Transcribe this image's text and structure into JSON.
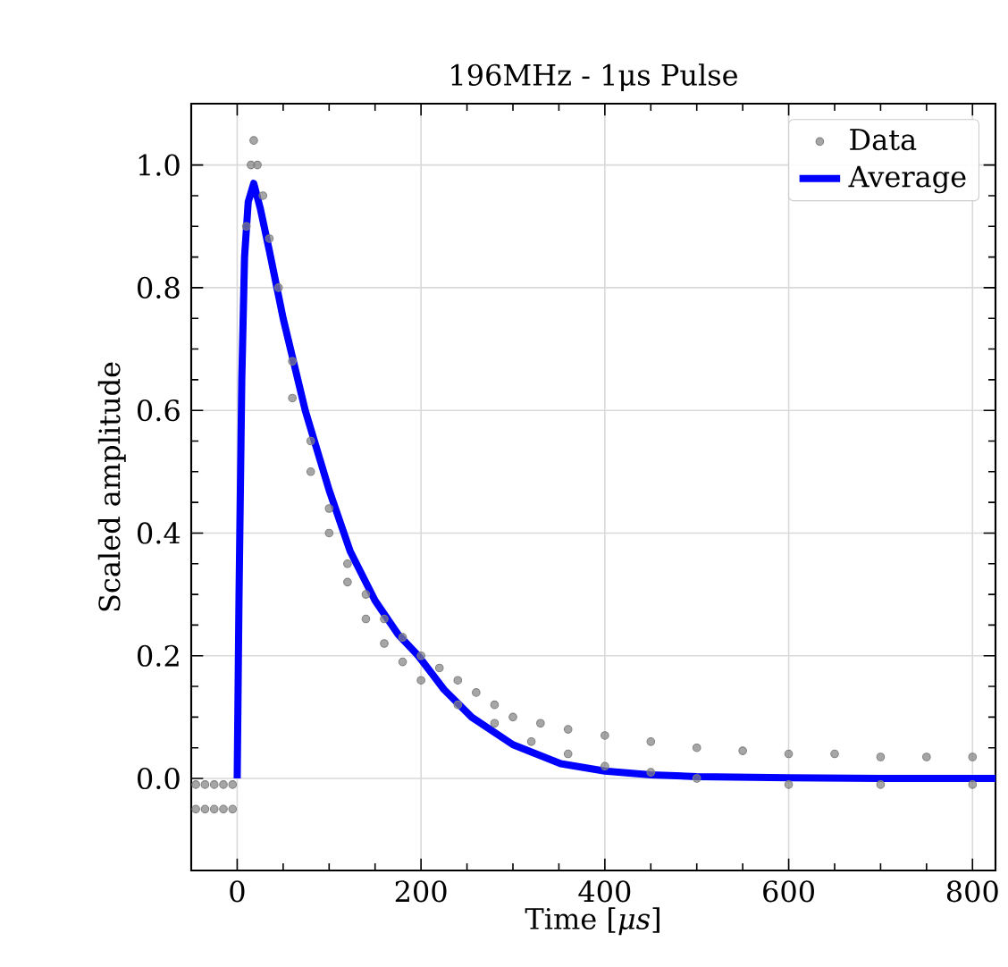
{
  "chart_data": {
    "type": "line",
    "title": "196MHz - 1μs Pulse",
    "xlabel": "Time [*μs*]",
    "ylabel": "Scaled amplitude",
    "xlim": [
      -50,
      825
    ],
    "ylim": [
      -0.15,
      1.1
    ],
    "xticks": [
      0,
      200,
      400,
      600,
      800
    ],
    "yticks": [
      {
        "value": 0,
        "label": "0.0"
      },
      0.2,
      0.4,
      0.6,
      0.8,
      {
        "value": 1,
        "label": "1.0"
      }
    ],
    "grid": true,
    "legend": "top right",
    "series": [
      {
        "name": "Data",
        "type": "scatter",
        "color": "#808080",
        "x": [
          -45,
          -45,
          -35,
          -35,
          -25,
          -25,
          -15,
          -15,
          -5,
          -5,
          10,
          15,
          18,
          22,
          28,
          35,
          45,
          60,
          60,
          80,
          80,
          100,
          100,
          120,
          120,
          140,
          140,
          160,
          160,
          180,
          180,
          200,
          200,
          220,
          240,
          240,
          260,
          280,
          280,
          300,
          320,
          330,
          360,
          360,
          400,
          400,
          450,
          450,
          500,
          500,
          550,
          600,
          600,
          650,
          700,
          700,
          750,
          800,
          800
        ],
        "values": [
          -0.01,
          -0.05,
          -0.01,
          -0.05,
          -0.01,
          -0.05,
          -0.01,
          -0.05,
          -0.01,
          -0.05,
          0.9,
          1.0,
          1.04,
          1.0,
          0.95,
          0.88,
          0.8,
          0.68,
          0.62,
          0.55,
          0.5,
          0.44,
          0.4,
          0.35,
          0.32,
          0.3,
          0.26,
          0.26,
          0.22,
          0.23,
          0.19,
          0.2,
          0.16,
          0.18,
          0.16,
          0.12,
          0.14,
          0.12,
          0.09,
          0.1,
          0.06,
          0.09,
          0.08,
          0.04,
          0.07,
          0.02,
          0.06,
          0.01,
          0.05,
          0.0,
          0.045,
          0.04,
          -0.01,
          0.04,
          0.035,
          -0.01,
          0.035,
          0.035,
          -0.01
        ]
      },
      {
        "name": "Average",
        "color": "#0000ff",
        "x": [
          0,
          2,
          5,
          8,
          12,
          18,
          25,
          35,
          50,
          74,
          100,
          123,
          150,
          175,
          197,
          225,
          255,
          300,
          352,
          400,
          450,
          500,
          600,
          700,
          825
        ],
        "values": [
          0,
          0.3,
          0.65,
          0.85,
          0.94,
          0.97,
          0.93,
          0.86,
          0.75,
          0.6,
          0.47,
          0.37,
          0.29,
          0.235,
          0.2,
          0.145,
          0.1,
          0.055,
          0.024,
          0.012,
          0.006,
          0.003,
          0.001,
          0,
          0
        ]
      }
    ]
  }
}
